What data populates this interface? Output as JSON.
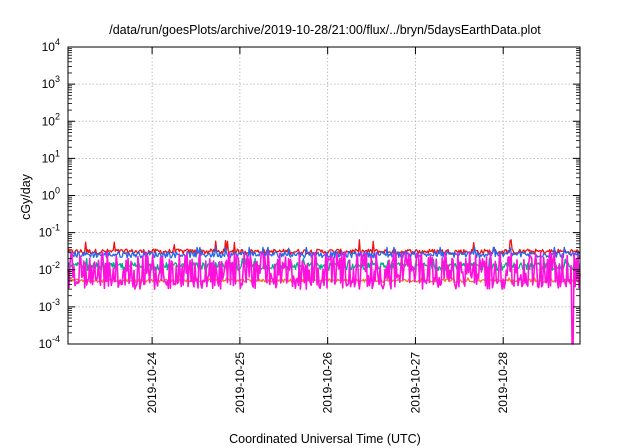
{
  "chart_data": {
    "type": "line",
    "title": "/data/run/goesPlots/archive/2019-10-28/21:00/flux/../bryn/5daysEarthData.plot",
    "xlabel": "Coordinated Universal Time (UTC)",
    "ylabel": "cGy/day",
    "y_scale": "log",
    "ylim": [
      0.0001,
      10000
    ],
    "xlim": [
      "2019-10-23T01:00",
      "2019-10-28T21:00"
    ],
    "grid": true,
    "y_ticks": [
      {
        "base": "10",
        "exp": "-4"
      },
      {
        "base": "10",
        "exp": "-3"
      },
      {
        "base": "10",
        "exp": "-2"
      },
      {
        "base": "10",
        "exp": "-1"
      },
      {
        "base": "10",
        "exp": "0"
      },
      {
        "base": "10",
        "exp": "1"
      },
      {
        "base": "10",
        "exp": "2"
      },
      {
        "base": "10",
        "exp": "3"
      },
      {
        "base": "10",
        "exp": "4"
      }
    ],
    "x_ticks": [
      "2019-10-24",
      "2019-10-25",
      "2019-10-26",
      "2019-10-27",
      "2019-10-28"
    ],
    "series": [
      {
        "color": "#ee1111",
        "typical": 0.03,
        "range": [
          0.02,
          0.09
        ]
      },
      {
        "color": "#2266ee",
        "typical": 0.025,
        "range": [
          0.015,
          0.04
        ]
      },
      {
        "color": "#00aa88",
        "typical": 0.012,
        "range": [
          0.006,
          0.02
        ]
      },
      {
        "color": "#ee7722",
        "typical": 0.005,
        "range": [
          0.004,
          0.006
        ]
      },
      {
        "color": "#ff11dd",
        "typical": 0.005,
        "range": [
          0.003,
          0.03
        ],
        "dropout": {
          "x": "2019-10-28T19:00",
          "y": 0.0001
        }
      }
    ]
  }
}
